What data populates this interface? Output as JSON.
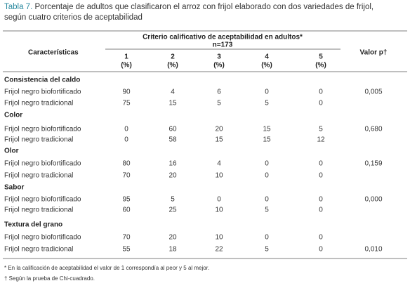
{
  "title": {
    "label": "Tabla 7.",
    "text": "Porcentaje de adultos que clasificaron el arroz con frijol elaborado con dos variedades de frijol, según cuatro criterios de aceptabilidad"
  },
  "table": {
    "header": {
      "characteristics": "Características",
      "criterion": "Criterio calificativo de aceptabilidad en adultos*",
      "n": "n=173",
      "columns": [
        {
          "number": "1",
          "unit": "(%)"
        },
        {
          "number": "2",
          "unit": "(%)"
        },
        {
          "number": "3",
          "unit": "(%)"
        },
        {
          "number": "4",
          "unit": "(%)"
        },
        {
          "number": "5",
          "unit": "(%)"
        }
      ],
      "p_value": "Valor p†"
    },
    "sections": [
      {
        "name": "Consistencia del caldo",
        "rows": [
          {
            "label": "Frijol negro biofortificado",
            "values": [
              90,
              4,
              6,
              0,
              0
            ],
            "p": "0,005"
          },
          {
            "label": "Frijol negro tradicional",
            "values": [
              75,
              15,
              5,
              5,
              0
            ],
            "p": null
          }
        ]
      },
      {
        "name": "Color",
        "rows": [
          {
            "label": "Frijol negro biofortificado",
            "values": [
              0,
              60,
              20,
              15,
              5
            ],
            "p": "0,680"
          },
          {
            "label": "Frijol negro tradicional",
            "values": [
              0,
              58,
              15,
              15,
              12
            ],
            "p": null
          }
        ]
      },
      {
        "name": "Olor",
        "rows": [
          {
            "label": "Frijol negro biofortificado",
            "values": [
              80,
              16,
              4,
              0,
              0
            ],
            "p": "0,159"
          },
          {
            "label": "Frijol negro tradicional",
            "values": [
              70,
              20,
              10,
              0,
              0
            ],
            "p": null
          }
        ]
      },
      {
        "name": "Sabor",
        "rows": [
          {
            "label": "Frijol negro biofortificado",
            "values": [
              95,
              5,
              0,
              0,
              0
            ],
            "p": "0,000"
          },
          {
            "label": "Frijol negro tradicional",
            "values": [
              60,
              25,
              10,
              5,
              0
            ],
            "p": null
          }
        ]
      },
      {
        "name": "Textura del grano",
        "rows": [
          {
            "label": "Frijol negro biofortificado",
            "values": [
              70,
              20,
              10,
              0,
              0
            ],
            "p": null
          },
          {
            "label": "Frijol negro tradicional",
            "values": [
              55,
              18,
              22,
              5,
              0
            ],
            "p": "0,010"
          }
        ]
      }
    ]
  },
  "footnotes": [
    "*  En la calificación de aceptabilidad el valor de  1 correspondía al peor y 5 al mejor.",
    "† Según la prueba de Chi-cuadrado."
  ]
}
